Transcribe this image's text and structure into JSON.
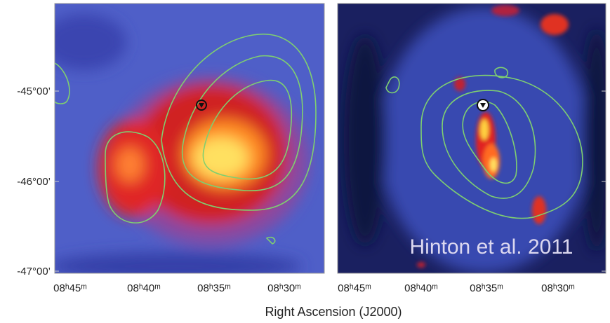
{
  "y_axis": {
    "ticks": [
      "-45°00’",
      "-46°00’",
      "-47°00’"
    ]
  },
  "panels": [
    {
      "x_ticks": [
        "08ʰ45ᵐ",
        "08ʰ40ᵐ",
        "08ʰ35ᵐ",
        "08ʰ30ᵐ"
      ]
    },
    {
      "x_ticks": [
        "08ʰ45ᵐ",
        "08ʰ40ᵐ",
        "08ʰ35ᵐ",
        "08ʰ30ᵐ"
      ]
    }
  ],
  "x_axis_label": "Right Ascension (J2000)",
  "annotation": "Hinton et al. 2011"
}
